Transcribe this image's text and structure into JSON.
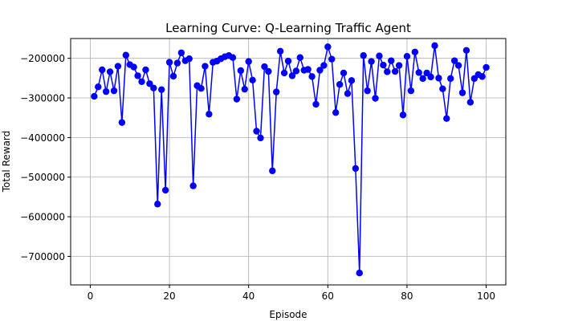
{
  "chart_data": {
    "type": "line",
    "title": "Learning Curve: Q-Learning Traffic Agent",
    "xlabel": "Episode",
    "ylabel": "Total Reward",
    "xlim": [
      -4.95,
      104.95
    ],
    "ylim": [
      -772000,
      -150000
    ],
    "xticks": [
      0,
      20,
      40,
      60,
      80,
      100
    ],
    "xtick_labels": [
      "0",
      "20",
      "40",
      "60",
      "80",
      "100"
    ],
    "yticks": [
      -700000,
      -600000,
      -500000,
      -400000,
      -300000,
      -200000
    ],
    "ytick_labels": [
      "−700000",
      "−600000",
      "−500000",
      "−400000",
      "−300000",
      "−200000"
    ],
    "grid": true,
    "series": [
      {
        "color": "#0000ff",
        "marker": "circle",
        "x": [
          1,
          2,
          3,
          4,
          5,
          6,
          7,
          8,
          9,
          10,
          11,
          12,
          13,
          14,
          15,
          16,
          17,
          18,
          19,
          20,
          21,
          22,
          23,
          24,
          25,
          26,
          27,
          28,
          29,
          30,
          31,
          32,
          33,
          34,
          35,
          36,
          37,
          38,
          39,
          40,
          41,
          42,
          43,
          44,
          45,
          46,
          47,
          48,
          49,
          50,
          51,
          52,
          53,
          54,
          55,
          56,
          57,
          58,
          59,
          60,
          61,
          62,
          63,
          64,
          65,
          66,
          67,
          68,
          69,
          70,
          71,
          72,
          73,
          74,
          75,
          76,
          77,
          78,
          79,
          80,
          81,
          82,
          83,
          84,
          85,
          86,
          87,
          88,
          89,
          90,
          91,
          92,
          93,
          94,
          95,
          96,
          97,
          98,
          99,
          100
        ],
        "y": [
          -296000,
          -272000,
          -229000,
          -284000,
          -234000,
          -282000,
          -220000,
          -362000,
          -192000,
          -216000,
          -222000,
          -244000,
          -259000,
          -229000,
          -264000,
          -275000,
          -568000,
          -279000,
          -533000,
          -210000,
          -245000,
          -212000,
          -186000,
          -206000,
          -201000,
          -522000,
          -269000,
          -276000,
          -220000,
          -341000,
          -210000,
          -207000,
          -201000,
          -196000,
          -193000,
          -198000,
          -303000,
          -231000,
          -278000,
          -208000,
          -255000,
          -384000,
          -401000,
          -221000,
          -233000,
          -484000,
          -285000,
          -182000,
          -237000,
          -207000,
          -244000,
          -232000,
          -198000,
          -230000,
          -228000,
          -246000,
          -316000,
          -230000,
          -218000,
          -171000,
          -202000,
          -337000,
          -266000,
          -237000,
          -289000,
          -256000,
          -478000,
          -742000,
          -193000,
          -282000,
          -208000,
          -301000,
          -194000,
          -217000,
          -234000,
          -206000,
          -233000,
          -218000,
          -343000,
          -195000,
          -282000,
          -184000,
          -236000,
          -251000,
          -237000,
          -247000,
          -168000,
          -250000,
          -277000,
          -352000,
          -251000,
          -206000,
          -218000,
          -287000,
          -180000,
          -311000,
          -251000,
          -241000,
          -246000,
          -223000
        ]
      }
    ]
  }
}
